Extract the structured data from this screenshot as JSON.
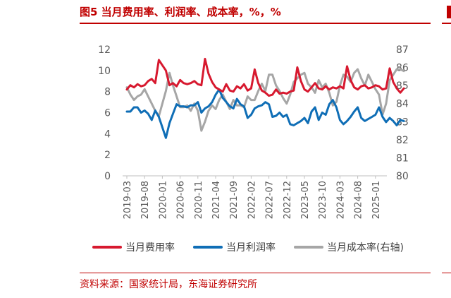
{
  "header": {
    "title": "图5 当月费用率、利润率、成本率，%，%"
  },
  "footer": {
    "source": "资料来源：国家统计局，东海证券研究所"
  },
  "colors": {
    "accent": "#c00000"
  },
  "chart_data": {
    "type": "line",
    "title": "当月费用率、利润率、成本率，%，%",
    "x_ticks": [
      "2019-03",
      "2019-08",
      "2020-01",
      "2020-06",
      "2020-11",
      "2021-04",
      "2021-09",
      "2022-02",
      "2022-07",
      "2022-12",
      "2023-05",
      "2023-10",
      "2024-03",
      "2024-08",
      "2025-01"
    ],
    "y_left": {
      "range": [
        0,
        12
      ],
      "ticks": [
        "0",
        "2",
        "4",
        "6",
        "8",
        "10",
        "12"
      ]
    },
    "y_right": {
      "range": [
        80,
        87
      ],
      "ticks": [
        "80",
        "81",
        "82",
        "83",
        "84",
        "85",
        "86",
        "87"
      ]
    },
    "legend_position": "bottom",
    "grid": false,
    "series": [
      {
        "name": "当月费用率",
        "color": "#d7192f",
        "axis": "left",
        "values": [
          8.2,
          8.6,
          8.4,
          8.7,
          8.5,
          8.6,
          9.0,
          9.2,
          8.8,
          11.0,
          10.5,
          10.0,
          8.6,
          8.8,
          8.5,
          9.1,
          8.8,
          8.7,
          8.8,
          9.0,
          8.7,
          8.6,
          11.1,
          9.7,
          8.9,
          8.4,
          8.2,
          8.0,
          8.7,
          8.1,
          8.0,
          8.5,
          8.3,
          8.7,
          8.1,
          8.3,
          10.1,
          8.8,
          8.1,
          7.9,
          7.6,
          7.7,
          8.2,
          7.8,
          7.9,
          7.8,
          8.0,
          8.1,
          10.3,
          9.0,
          8.2,
          8.0,
          8.4,
          8.8,
          8.3,
          8.2,
          8.5,
          8.2,
          8.4,
          8.3,
          8.5,
          8.3,
          10.4,
          9.1,
          8.4,
          8.2,
          8.5,
          8.6,
          8.3,
          8.4,
          8.6,
          8.5,
          8.2,
          8.3,
          10.2,
          8.9,
          8.3,
          7.9,
          8.3
        ]
      },
      {
        "name": "当月利润率",
        "color": "#0f6eb6",
        "axis": "left",
        "values": [
          6.1,
          6.1,
          6.5,
          6.5,
          6.0,
          6.2,
          5.9,
          5.3,
          6.2,
          5.6,
          4.6,
          3.6,
          5.0,
          5.9,
          6.8,
          6.6,
          6.6,
          6.5,
          6.7,
          6.7,
          7.0,
          6.0,
          6.4,
          6.6,
          7.0,
          7.7,
          8.2,
          7.4,
          7.0,
          6.6,
          6.4,
          7.3,
          6.8,
          6.6,
          5.5,
          5.8,
          6.4,
          6.6,
          6.7,
          7.0,
          6.8,
          5.6,
          5.7,
          6.0,
          5.6,
          5.8,
          4.9,
          4.8,
          5.0,
          5.2,
          5.5,
          5.0,
          6.1,
          6.5,
          5.3,
          6.0,
          5.8,
          6.8,
          7.2,
          6.5,
          5.3,
          4.9,
          5.2,
          5.6,
          6.1,
          6.5,
          5.5,
          5.2,
          5.4,
          5.6,
          5.8,
          6.5,
          5.6,
          5.1,
          5.5,
          5.2,
          4.8,
          5.3,
          5.2
        ]
      },
      {
        "name": "当月成本率(右轴)",
        "color": "#a6a6a6",
        "axis": "right",
        "values": [
          84.9,
          84.5,
          84.2,
          84.4,
          84.5,
          84.8,
          84.4,
          84.0,
          83.6,
          83.3,
          84.0,
          84.7,
          85.7,
          85.0,
          84.4,
          83.8,
          83.8,
          83.9,
          83.6,
          84.0,
          83.6,
          82.5,
          83.0,
          83.6,
          83.9,
          83.7,
          84.2,
          84.5,
          84.1,
          83.7,
          84.2,
          83.9,
          83.9,
          83.8,
          84.4,
          84.2,
          84.2,
          84.7,
          85.1,
          84.7,
          85.6,
          85.6,
          85.0,
          84.7,
          84.3,
          84.0,
          84.5,
          85.2,
          85.4,
          85.6,
          85.7,
          85.1,
          84.9,
          84.6,
          85.3,
          84.9,
          85.1,
          84.6,
          83.9,
          84.1,
          85.0,
          85.6,
          85.5,
          85.2,
          85.7,
          85.9,
          85.4,
          85.0,
          85.6,
          85.2,
          84.8,
          84.5,
          83.4,
          84.0,
          85.3,
          85.6,
          85.9,
          85.9,
          85.8
        ]
      }
    ]
  }
}
